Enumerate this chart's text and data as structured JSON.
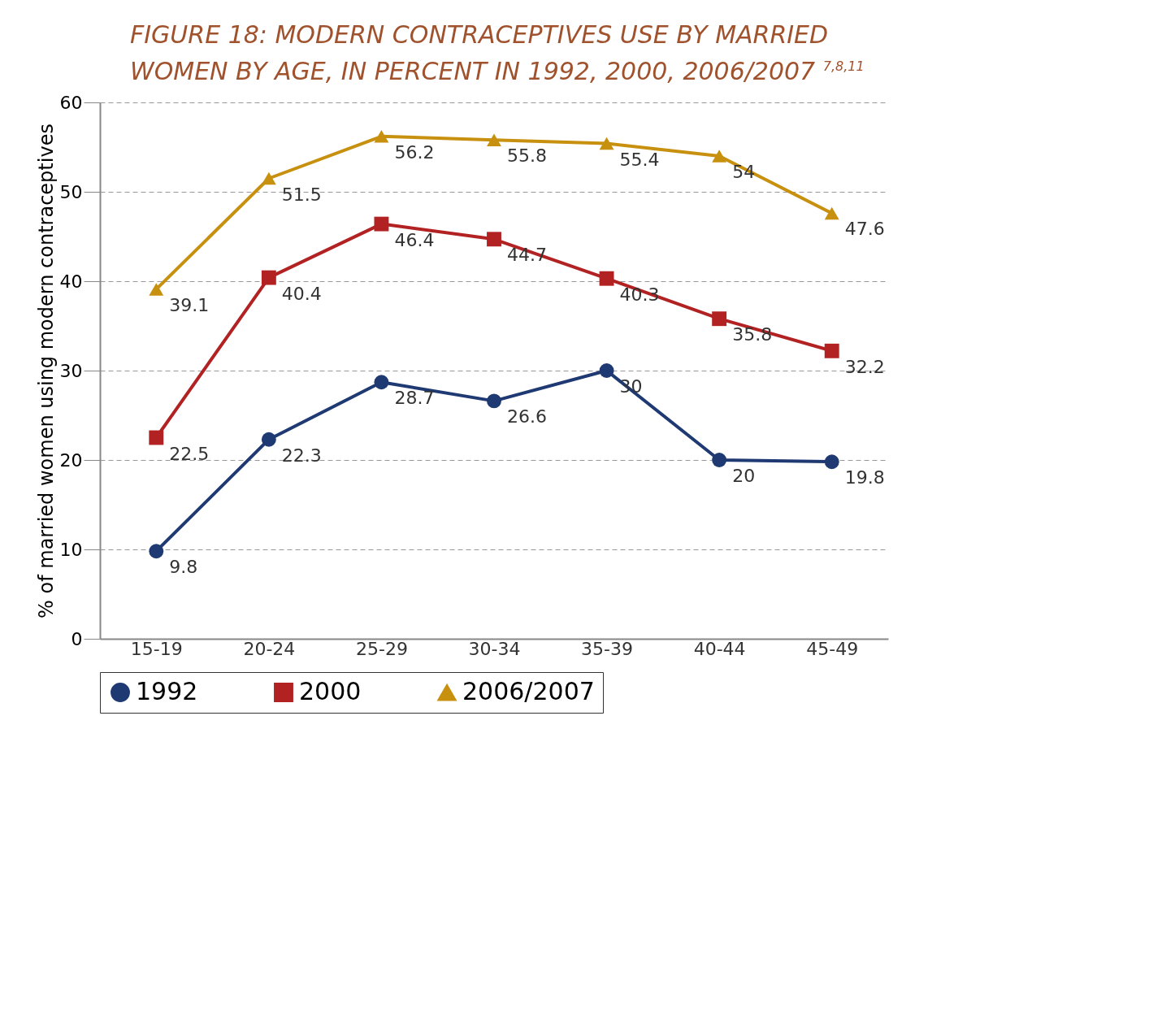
{
  "chart_data": {
    "type": "line",
    "title": "FIGURE 18: MODERN CONTRACEPTIVES USE BY MARRIED WOMEN BY AGE, IN PERCENT IN 1992, 2000, 2006/2007 $^{7,8,11}$",
    "ylabel": "% of married women using modern contraceptives",
    "categories": [
      "15-19",
      "20-24",
      "25-29",
      "30-34",
      "35-39",
      "40-44",
      "45-49"
    ],
    "series": [
      {
        "name": "1992",
        "color": "#1f3a73",
        "marker": "circle",
        "values": [
          9.8,
          22.3,
          28.7,
          26.6,
          30,
          20,
          19.8
        ]
      },
      {
        "name": "2000",
        "color": "#b22222",
        "marker": "square",
        "values": [
          22.5,
          40.4,
          46.4,
          44.7,
          40.3,
          35.8,
          32.2
        ]
      },
      {
        "name": "2006/2007",
        "color": "#c8900f",
        "marker": "triangle",
        "values": [
          39.1,
          51.5,
          56.2,
          55.8,
          55.4,
          54,
          47.6
        ]
      }
    ],
    "ylim": [
      0,
      60
    ],
    "yticks": [
      0,
      10,
      20,
      30,
      40,
      50,
      60
    ],
    "grid": "y",
    "legend": "bottom",
    "data_labels": true
  }
}
